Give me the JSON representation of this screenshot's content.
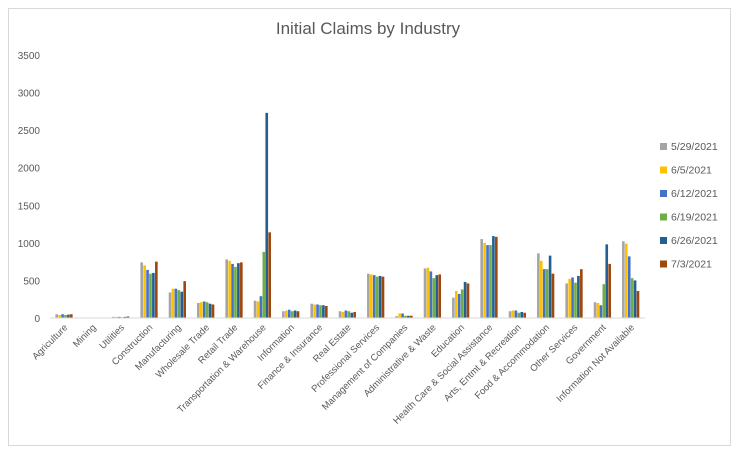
{
  "chart_data": {
    "type": "bar",
    "title": "Initial Claims by Industry",
    "xlabel": "",
    "ylabel": "",
    "ylim": [
      0,
      3500
    ],
    "yticks": [
      0,
      500,
      1000,
      1500,
      2000,
      2500,
      3000,
      3500
    ],
    "grid": false,
    "legend": "right",
    "categories": [
      "Agriculture",
      "Mining",
      "Utilities",
      "Construction",
      "Manufacturing",
      "Wholesale Trade",
      "Retail Trade",
      "Transportation & Warehouse",
      "Information",
      "Finance & Insurance",
      "Real Estate",
      "Professional Services",
      "Management of Companies",
      "Administrative & Waste",
      "Education",
      "Health Care & Social Assistance",
      "Arts, Entmt & Recreation",
      "Food & Accommodation",
      "Other Services",
      "Government",
      "Information Not Available"
    ],
    "series": [
      {
        "name": "5/29/2021",
        "color": "#a5a5a5",
        "values": [
          50,
          5,
          15,
          740,
          340,
          200,
          780,
          230,
          90,
          190,
          90,
          590,
          25,
          660,
          270,
          1050,
          90,
          860,
          460,
          210,
          1020
        ]
      },
      {
        "name": "6/5/2021",
        "color": "#ffc000",
        "values": [
          40,
          5,
          15,
          700,
          390,
          210,
          760,
          220,
          100,
          180,
          80,
          580,
          60,
          670,
          360,
          1000,
          100,
          760,
          520,
          200,
          990
        ]
      },
      {
        "name": "6/12/2021",
        "color": "#4472c4",
        "values": [
          50,
          5,
          15,
          640,
          390,
          220,
          720,
          290,
          110,
          180,
          100,
          570,
          60,
          620,
          320,
          970,
          100,
          650,
          540,
          170,
          820
        ]
      },
      {
        "name": "6/19/2021",
        "color": "#70ad47",
        "values": [
          40,
          5,
          10,
          590,
          370,
          210,
          680,
          880,
          90,
          170,
          90,
          550,
          30,
          530,
          380,
          970,
          70,
          650,
          470,
          450,
          530
        ]
      },
      {
        "name": "6/26/2021",
        "color": "#255e91",
        "values": [
          45,
          5,
          15,
          600,
          350,
          190,
          730,
          2730,
          100,
          170,
          70,
          560,
          30,
          570,
          480,
          1090,
          80,
          830,
          560,
          980,
          500
        ]
      },
      {
        "name": "7/3/2021",
        "color": "#9e480e",
        "values": [
          50,
          5,
          20,
          750,
          490,
          180,
          740,
          1140,
          90,
          160,
          80,
          550,
          30,
          580,
          460,
          1080,
          70,
          590,
          650,
          720,
          360
        ]
      }
    ]
  }
}
